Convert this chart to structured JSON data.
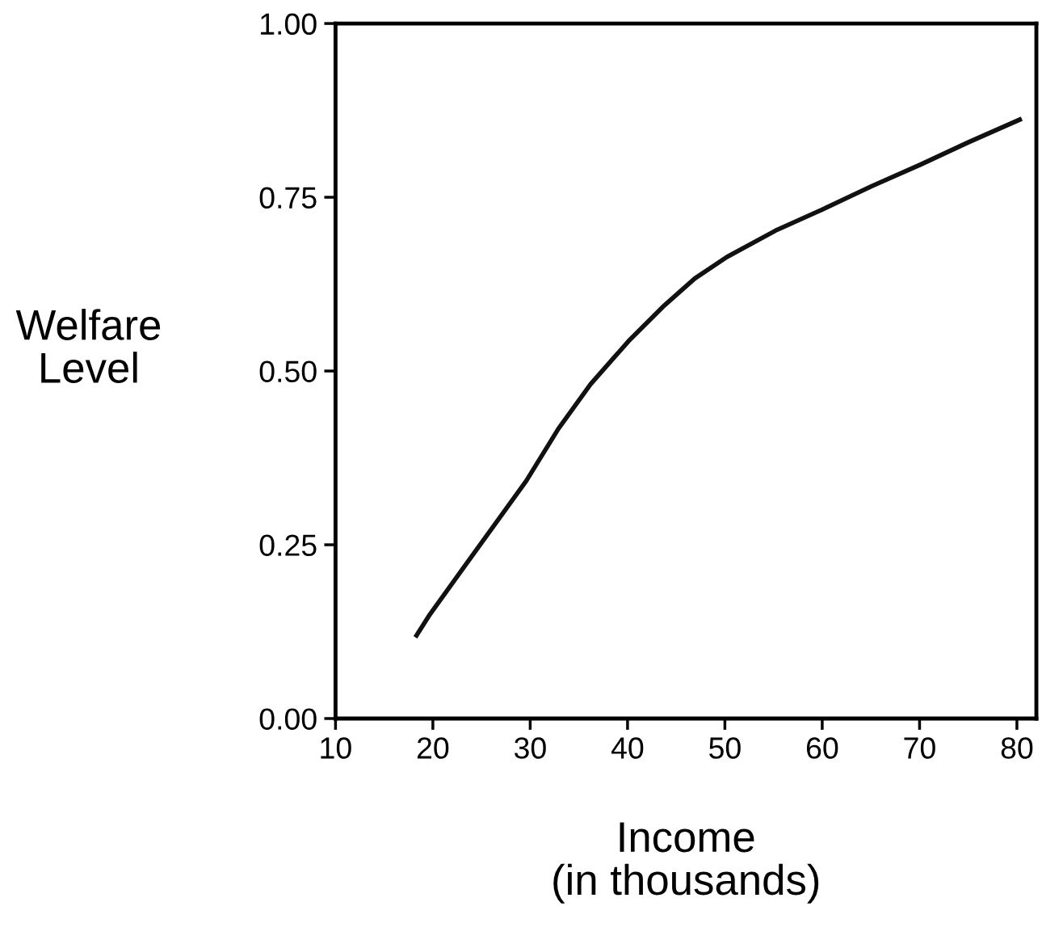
{
  "chart_data": {
    "type": "line",
    "xlabel": "Income\n(in thousands)",
    "ylabel": "Welfare\nLevel",
    "x": [
      18.2,
      19.7,
      23.0,
      26.3,
      29.6,
      32.9,
      36.2,
      40.1,
      43.6,
      46.9,
      50.2,
      55.2,
      60.1,
      65.1,
      70.1,
      75.0,
      80.5
    ],
    "series": [
      {
        "color": "#111111",
        "values": [
          0.117,
          0.15,
          0.214,
          0.278,
          0.342,
          0.417,
          0.481,
          0.543,
          0.592,
          0.633,
          0.664,
          0.702,
          0.733,
          0.766,
          0.797,
          0.829,
          0.863
        ]
      }
    ],
    "xlim": [
      10,
      82
    ],
    "xticks": [
      10,
      20,
      30,
      40,
      50,
      60,
      70,
      80
    ],
    "ylim": [
      0,
      1
    ],
    "yticks": [
      {
        "value": 0,
        "label": "0.00"
      },
      {
        "value": 0.25,
        "label": "0.25"
      },
      {
        "value": 0.5,
        "label": "0.50"
      },
      {
        "value": 0.75,
        "label": "0.75"
      },
      {
        "value": 1,
        "label": "1.00"
      }
    ],
    "grid": false,
    "legend": false,
    "marker": "none",
    "line_style": "solid"
  }
}
